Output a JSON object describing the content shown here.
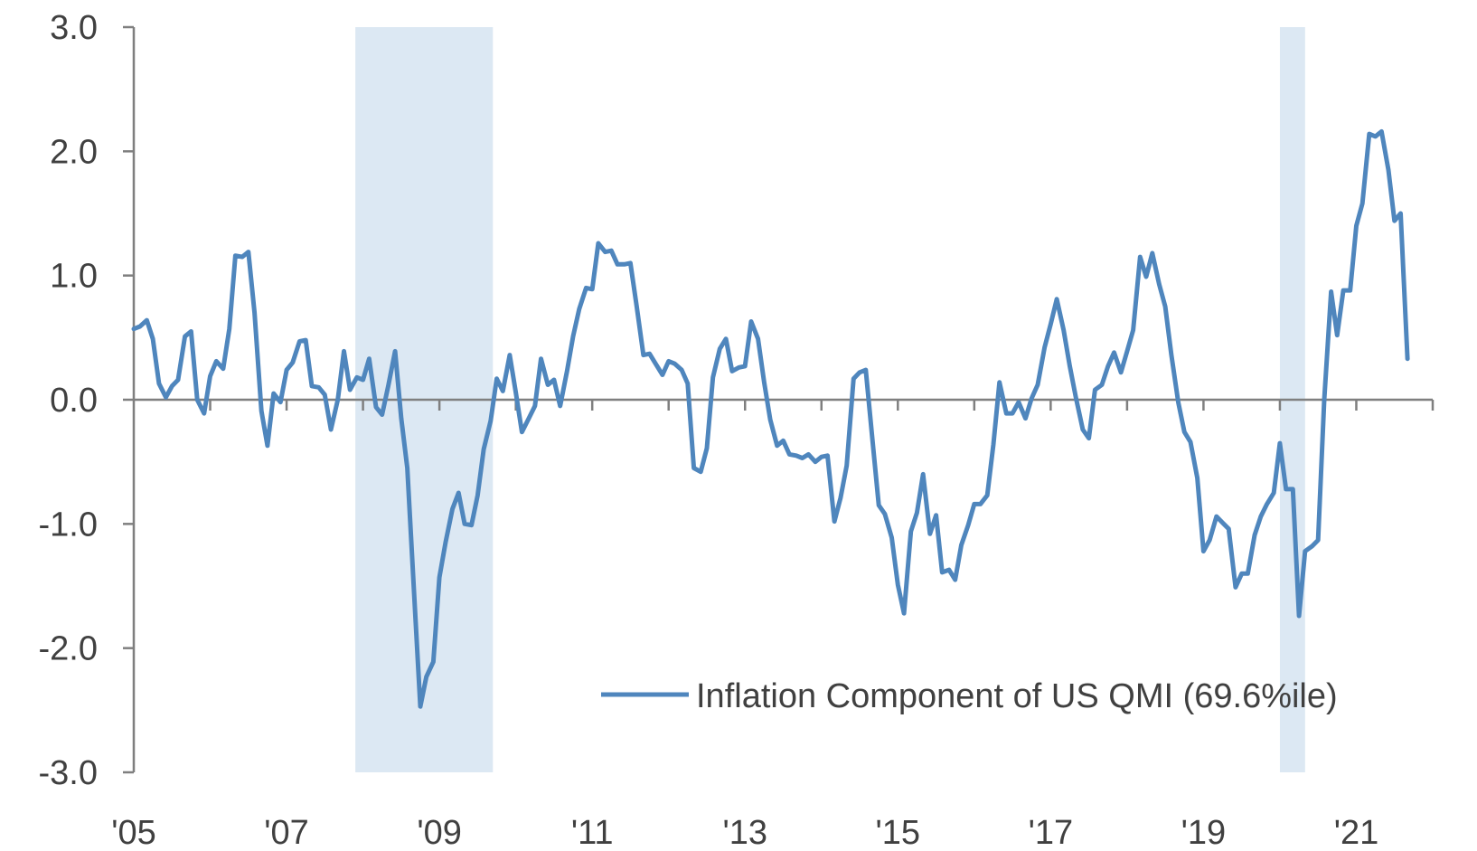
{
  "chart_data": {
    "type": "line",
    "title": "",
    "xlabel": "",
    "ylabel": "",
    "ylim": [
      -3.0,
      3.0
    ],
    "yticks": [
      3.0,
      2.0,
      1.0,
      0.0,
      -1.0,
      -2.0,
      -3.0
    ],
    "ytick_labels": [
      "3.0",
      "2.0",
      "1.0",
      "0.0",
      "-1.0",
      "-2.0",
      "-3.0"
    ],
    "xlim": [
      2005.0,
      2022.0
    ],
    "xticks": [
      2005,
      2007,
      2009,
      2011,
      2013,
      2015,
      2017,
      2019,
      2021
    ],
    "xtick_labels": [
      "'05",
      "'07",
      "'09",
      "'11",
      "'13",
      "'15",
      "'17",
      "'19",
      "'21"
    ],
    "shaded_periods": [
      {
        "start": 2007.9,
        "end": 2009.7
      },
      {
        "start": 2020.0,
        "end": 2020.33
      }
    ],
    "series": [
      {
        "name": "Inflation Component of US QMI (69.6%ile)",
        "color": "#4f86bd",
        "x": [
          2005.0,
          2005.08,
          2005.17,
          2005.25,
          2005.33,
          2005.42,
          2005.5,
          2005.58,
          2005.67,
          2005.75,
          2005.83,
          2005.92,
          2006.0,
          2006.08,
          2006.17,
          2006.25,
          2006.33,
          2006.42,
          2006.5,
          2006.58,
          2006.67,
          2006.75,
          2006.83,
          2006.92,
          2007.0,
          2007.08,
          2007.17,
          2007.25,
          2007.33,
          2007.42,
          2007.5,
          2007.58,
          2007.67,
          2007.75,
          2007.83,
          2007.92,
          2008.0,
          2008.08,
          2008.17,
          2008.25,
          2008.33,
          2008.42,
          2008.5,
          2008.58,
          2008.67,
          2008.75,
          2008.83,
          2008.92,
          2009.0,
          2009.08,
          2009.17,
          2009.25,
          2009.33,
          2009.42,
          2009.5,
          2009.58,
          2009.67,
          2009.75,
          2009.83,
          2009.92,
          2010.0,
          2010.08,
          2010.17,
          2010.25,
          2010.33,
          2010.42,
          2010.5,
          2010.58,
          2010.67,
          2010.75,
          2010.83,
          2010.92,
          2011.0,
          2011.08,
          2011.17,
          2011.25,
          2011.33,
          2011.42,
          2011.5,
          2011.58,
          2011.67,
          2011.75,
          2011.83,
          2011.92,
          2012.0,
          2012.08,
          2012.17,
          2012.25,
          2012.33,
          2012.42,
          2012.5,
          2012.58,
          2012.67,
          2012.75,
          2012.83,
          2012.92,
          2013.0,
          2013.08,
          2013.17,
          2013.25,
          2013.33,
          2013.42,
          2013.5,
          2013.58,
          2013.67,
          2013.75,
          2013.83,
          2013.92,
          2014.0,
          2014.08,
          2014.17,
          2014.25,
          2014.33,
          2014.42,
          2014.5,
          2014.58,
          2014.67,
          2014.75,
          2014.83,
          2014.92,
          2015.0,
          2015.08,
          2015.17,
          2015.25,
          2015.33,
          2015.42,
          2015.5,
          2015.58,
          2015.67,
          2015.75,
          2015.83,
          2015.92,
          2016.0,
          2016.08,
          2016.17,
          2016.25,
          2016.33,
          2016.42,
          2016.5,
          2016.58,
          2016.67,
          2016.75,
          2016.83,
          2016.92,
          2017.0,
          2017.08,
          2017.17,
          2017.25,
          2017.33,
          2017.42,
          2017.5,
          2017.58,
          2017.67,
          2017.75,
          2017.83,
          2017.92,
          2018.0,
          2018.08,
          2018.17,
          2018.25,
          2018.33,
          2018.42,
          2018.5,
          2018.58,
          2018.67,
          2018.75,
          2018.83,
          2018.92,
          2019.0,
          2019.08,
          2019.17,
          2019.25,
          2019.33,
          2019.42,
          2019.5,
          2019.58,
          2019.67,
          2019.75,
          2019.83,
          2019.92,
          2020.0,
          2020.08,
          2020.17,
          2020.25,
          2020.33,
          2020.42,
          2020.5,
          2020.58,
          2020.67,
          2020.75,
          2020.83,
          2020.92,
          2021.0,
          2021.08,
          2021.17,
          2021.25,
          2021.33,
          2021.42,
          2021.5,
          2021.58,
          2021.67
        ],
        "values": [
          0.57,
          0.59,
          0.64,
          0.49,
          0.13,
          0.02,
          0.11,
          0.16,
          0.51,
          0.55,
          0.0,
          -0.11,
          0.19,
          0.31,
          0.25,
          0.57,
          1.16,
          1.15,
          1.19,
          0.7,
          -0.09,
          -0.37,
          0.05,
          -0.02,
          0.24,
          0.3,
          0.47,
          0.48,
          0.11,
          0.1,
          0.04,
          -0.24,
          0.0,
          0.39,
          0.08,
          0.18,
          0.16,
          0.33,
          -0.06,
          -0.12,
          0.11,
          0.39,
          -0.15,
          -0.55,
          -1.57,
          -2.47,
          -2.23,
          -2.11,
          -1.43,
          -1.15,
          -0.88,
          -0.75,
          -1.0,
          -1.01,
          -0.77,
          -0.4,
          -0.17,
          0.17,
          0.07,
          0.36,
          0.06,
          -0.26,
          -0.15,
          -0.05,
          0.33,
          0.12,
          0.16,
          -0.05,
          0.23,
          0.51,
          0.73,
          0.9,
          0.89,
          1.26,
          1.19,
          1.2,
          1.09,
          1.09,
          1.1,
          0.76,
          0.36,
          0.37,
          0.29,
          0.2,
          0.31,
          0.29,
          0.24,
          0.13,
          -0.55,
          -0.58,
          -0.39,
          0.18,
          0.41,
          0.49,
          0.23,
          0.26,
          0.27,
          0.63,
          0.49,
          0.14,
          -0.16,
          -0.37,
          -0.33,
          -0.44,
          -0.45,
          -0.47,
          -0.44,
          -0.5,
          -0.46,
          -0.45,
          -0.98,
          -0.79,
          -0.53,
          0.17,
          0.22,
          0.24,
          -0.34,
          -0.85,
          -0.92,
          -1.11,
          -1.49,
          -1.72,
          -1.06,
          -0.91,
          -0.6,
          -1.08,
          -0.93,
          -1.39,
          -1.37,
          -1.45,
          -1.17,
          -1.01,
          -0.84,
          -0.84,
          -0.77,
          -0.36,
          0.14,
          -0.11,
          -0.11,
          -0.02,
          -0.15,
          0.01,
          0.12,
          0.42,
          0.61,
          0.81,
          0.56,
          0.27,
          0.02,
          -0.24,
          -0.31,
          0.08,
          0.12,
          0.27,
          0.38,
          0.22,
          0.39,
          0.56,
          1.15,
          0.99,
          1.18,
          0.93,
          0.75,
          0.36,
          -0.02,
          -0.26,
          -0.34,
          -0.63,
          -1.22,
          -1.13,
          -0.94,
          -0.99,
          -1.04,
          -1.51,
          -1.4,
          -1.4,
          -1.09,
          -0.94,
          -0.84,
          -0.75,
          -0.35,
          -0.72,
          -0.72,
          -1.74,
          -1.22,
          -1.18,
          -1.13,
          0.0,
          0.87,
          0.52,
          0.88,
          0.88,
          1.4,
          1.58,
          2.14,
          2.12,
          2.16,
          1.85,
          1.44,
          1.5,
          0.33
        ]
      }
    ],
    "legend": {
      "position": "bottom-right",
      "label": "Inflation Component of US QMI (69.6%ile)"
    }
  }
}
